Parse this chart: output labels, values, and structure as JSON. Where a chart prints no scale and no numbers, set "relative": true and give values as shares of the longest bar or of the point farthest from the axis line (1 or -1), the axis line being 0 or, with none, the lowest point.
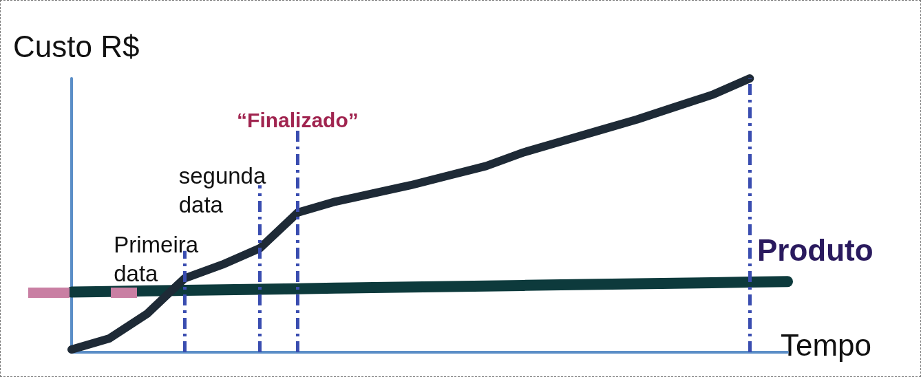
{
  "chart_data": {
    "type": "line",
    "ylabel": "Custo R$",
    "xlabel": "Tempo",
    "relative": true,
    "marker": "none",
    "categories": [
      null,
      null,
      null,
      null,
      null,
      null,
      null,
      null,
      null,
      null,
      null,
      null,
      null,
      null,
      null,
      null,
      null,
      null,
      null,
      null
    ],
    "series": [
      {
        "color": "#1e2a36",
        "values": [
          0.01,
          0.05,
          0.14,
          0.27,
          0.32,
          0.38,
          0.51,
          0.55,
          0.58,
          0.61,
          0.645,
          0.68,
          0.73,
          0.77,
          0.81,
          0.85,
          0.895,
          0.94,
          1,
          null
        ]
      },
      {
        "name": "Produto",
        "color": "#0d3a3c",
        "values": [
          0.22,
          0.222,
          0.224,
          0.226,
          0.228,
          0.23,
          0.232,
          0.234,
          0.236,
          0.238,
          0.24,
          0.242,
          0.244,
          0.246,
          0.248,
          0.25,
          0.252,
          0.254,
          0.256,
          0.258
        ]
      }
    ],
    "annotations": [
      "Primeira data",
      "segunda data",
      "“Finalizado”"
    ]
  }
}
